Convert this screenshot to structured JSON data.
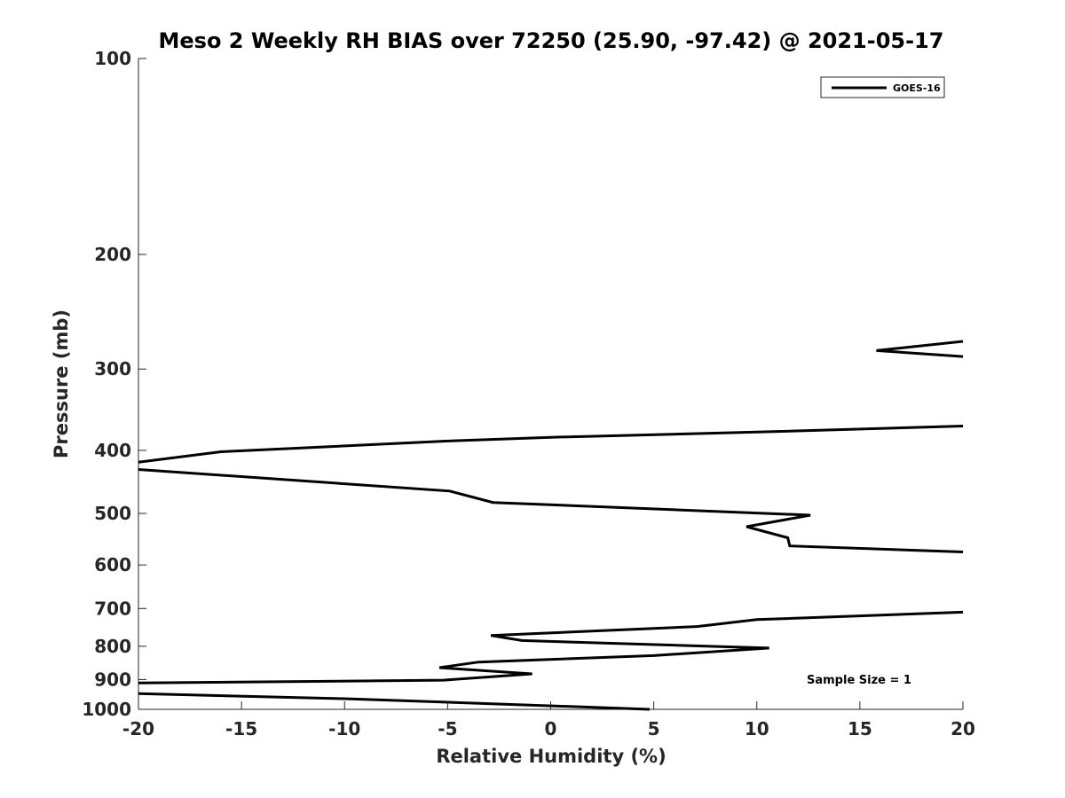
{
  "chart_data": {
    "type": "line",
    "title": "Meso 2 Weekly RH BIAS over 72250 (25.90, -97.42) @ 2021-05-17",
    "xlabel": "Relative Humidity (%)",
    "ylabel": "Pressure (mb)",
    "xlim": [
      -20,
      20
    ],
    "ylim": [
      100,
      1000
    ],
    "yscale": "log",
    "y_reversed": true,
    "x_ticks": [
      -20,
      -15,
      -10,
      -5,
      0,
      5,
      10,
      15,
      20
    ],
    "y_ticks": [
      100,
      200,
      300,
      400,
      500,
      600,
      700,
      800,
      900,
      1000
    ],
    "legend": {
      "position": "top-right",
      "entries": [
        "GOES-16"
      ]
    },
    "annotation": "Sample Size = 1",
    "series": [
      {
        "name": "GOES-16",
        "color": "#000000",
        "points": [
          [
            4.8,
            1000
          ],
          [
            -1.0,
            985
          ],
          [
            -10.0,
            963
          ],
          [
            -20.0,
            946
          ],
          [
            null,
            null
          ],
          [
            -20.0,
            911
          ],
          [
            -5.2,
            902
          ],
          [
            -0.9,
            882
          ],
          [
            -5.4,
            863
          ],
          [
            -3.5,
            846
          ],
          [
            5.0,
            827
          ],
          [
            10.6,
            805
          ],
          [
            -1.4,
            784
          ],
          [
            -2.9,
            770
          ],
          [
            7.1,
            746
          ],
          [
            10.0,
            728
          ],
          [
            20.0,
            709
          ],
          [
            null,
            null
          ],
          [
            20.0,
            573
          ],
          [
            11.6,
            561
          ],
          [
            11.5,
            545
          ],
          [
            9.5,
            524
          ],
          [
            12.6,
            503
          ],
          [
            -2.8,
            481
          ],
          [
            -4.9,
            462
          ],
          [
            -20.0,
            428
          ],
          [
            null,
            null
          ],
          [
            -20.0,
            417
          ],
          [
            -16.0,
            402
          ],
          [
            -5.0,
            387
          ],
          [
            0.0,
            382
          ],
          [
            10.0,
            375
          ],
          [
            20.0,
            367
          ],
          [
            null,
            null
          ],
          [
            20.0,
            287
          ],
          [
            15.8,
            281
          ],
          [
            20.0,
            272
          ]
        ]
      }
    ]
  }
}
